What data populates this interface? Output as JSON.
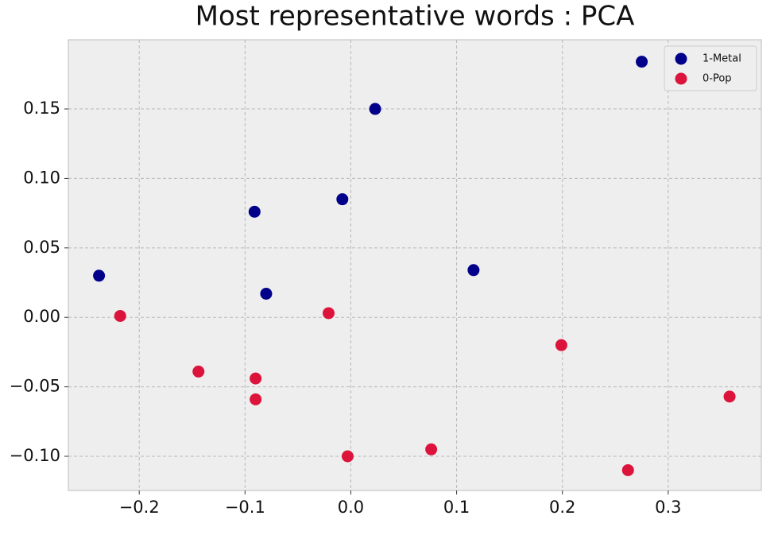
{
  "chart_data": {
    "type": "scatter",
    "title": "Most representative words : PCA",
    "xlim": [
      -0.267,
      0.388
    ],
    "ylim": [
      -0.1246,
      0.1998
    ],
    "xticks": [
      {
        "value": -0.2,
        "label": "−0.2"
      },
      {
        "value": -0.1,
        "label": "−0.1"
      },
      {
        "value": 0,
        "label": "0.0"
      },
      {
        "value": 0.1,
        "label": "0.1"
      },
      {
        "value": 0.2,
        "label": "0.2"
      },
      {
        "value": 0.3,
        "label": "0.3"
      }
    ],
    "yticks": [
      {
        "value": -0.1,
        "label": "−0.10"
      },
      {
        "value": -0.05,
        "label": "−0.05"
      },
      {
        "value": 0,
        "label": "0.00"
      },
      {
        "value": 0.05,
        "label": "0.05"
      },
      {
        "value": 0.1,
        "label": "0.10"
      },
      {
        "value": 0.15,
        "label": "0.15"
      }
    ],
    "grid": true,
    "legend": "upper right",
    "series": [
      {
        "name": "1-Metal",
        "color": "#00008b",
        "x": [
          0.275,
          0.023,
          -0.008,
          -0.091,
          0.116,
          -0.238,
          -0.08
        ],
        "values": [
          0.184,
          0.15,
          0.085,
          0.076,
          0.034,
          0.03,
          0.017
        ]
      },
      {
        "name": "0-Pop",
        "color": "#dc143c",
        "x": [
          -0.218,
          -0.021,
          0.199,
          -0.144,
          -0.09,
          -0.09,
          0.358,
          -0.003,
          0.076,
          0.262
        ],
        "values": [
          0.001,
          0.003,
          -0.02,
          -0.039,
          -0.044,
          -0.059,
          -0.057,
          -0.1,
          -0.095,
          -0.11
        ]
      }
    ]
  }
}
